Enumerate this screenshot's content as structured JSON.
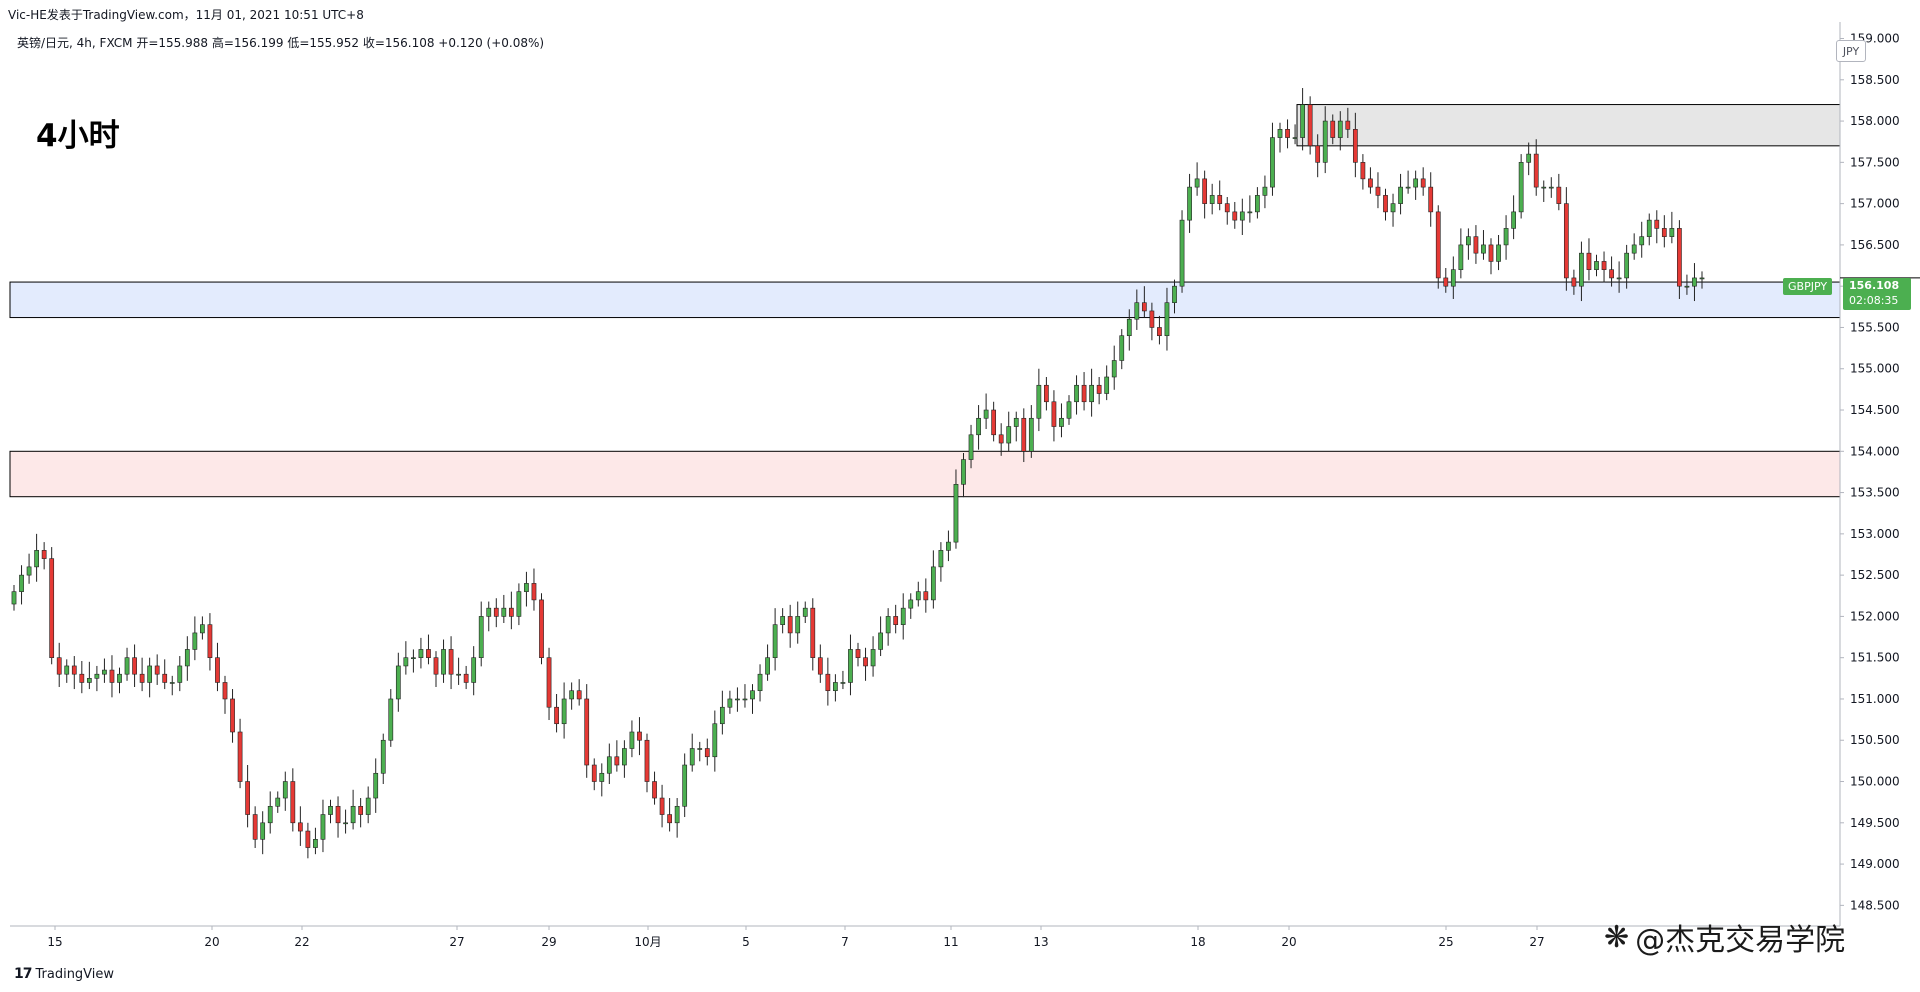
{
  "header": {
    "publisher": "Vic-HE发表于TradingView.com，11月 01, 2021 10:51 UTC+8",
    "ohlc": "英镑/日元, 4h, FXCM  开=155.988  高=156.199  低=155.952  收=156.108  +0.120 (+0.08%)"
  },
  "timeframe_label": "4小时",
  "currency_badge": "JPY",
  "symbol_tag": "GBPJPY",
  "last_price": {
    "value": "156.108",
    "countdown": "02:08:35"
  },
  "footer": {
    "logo_mark": "17",
    "logo_text": "TradingView"
  },
  "brand": {
    "icon": "wechat-like-icon",
    "text": "@杰克交易学院"
  },
  "colors": {
    "up": "#26a69a",
    "up_fill": "#4caf50",
    "down": "#ef5350",
    "down_fill": "#e53935",
    "wick": "#222222",
    "grid": "#e0e3eb"
  },
  "chart_data": {
    "type": "candlestick",
    "symbol": "GBPJPY",
    "interval": "4h",
    "ylim": [
      148.2,
      159.1
    ],
    "y_ticks": [
      "159.000",
      "158.500",
      "158.000",
      "157.500",
      "157.000",
      "156.500",
      "156.000",
      "155.500",
      "155.000",
      "154.500",
      "154.000",
      "153.500",
      "153.000",
      "152.500",
      "152.000",
      "151.500",
      "151.000",
      "150.500",
      "150.000",
      "149.500",
      "149.000",
      "148.500"
    ],
    "x_ticks": [
      "15",
      "20",
      "22",
      "27",
      "29",
      "10月",
      "5",
      "7",
      "11",
      "13",
      "18",
      "20",
      "25",
      "27"
    ],
    "zones": [
      {
        "name": "resistance",
        "from": 157.7,
        "to": 158.2,
        "color": "#e6e6e6"
      },
      {
        "name": "support-blue",
        "from": 155.62,
        "to": 156.05,
        "color": "#e3ebfd"
      },
      {
        "name": "support-red",
        "from": 153.45,
        "to": 154.0,
        "color": "#fde8e8"
      }
    ],
    "closes": [
      152.3,
      152.5,
      152.6,
      152.8,
      152.7,
      151.5,
      151.3,
      151.4,
      151.3,
      151.2,
      151.25,
      151.3,
      151.35,
      151.2,
      151.3,
      151.5,
      151.3,
      151.2,
      151.4,
      151.3,
      151.2,
      151.2,
      151.4,
      151.6,
      151.8,
      151.9,
      151.5,
      151.2,
      151.0,
      150.6,
      150.0,
      149.6,
      149.3,
      149.5,
      149.7,
      149.8,
      150.0,
      149.5,
      149.4,
      149.2,
      149.3,
      149.6,
      149.7,
      149.5,
      149.5,
      149.7,
      149.6,
      149.8,
      150.1,
      150.5,
      151.0,
      151.4,
      151.5,
      151.5,
      151.6,
      151.5,
      151.3,
      151.6,
      151.3,
      151.3,
      151.2,
      151.5,
      152.0,
      152.1,
      152.0,
      152.1,
      152.0,
      152.3,
      152.4,
      152.2,
      151.5,
      150.9,
      150.7,
      151.0,
      151.1,
      151.0,
      150.2,
      150.0,
      150.1,
      150.3,
      150.2,
      150.4,
      150.6,
      150.5,
      150.0,
      149.8,
      149.6,
      149.5,
      149.7,
      150.2,
      150.4,
      150.4,
      150.3,
      150.7,
      150.9,
      151.0,
      151.0,
      151.0,
      151.1,
      151.3,
      151.5,
      151.9,
      152.0,
      151.8,
      152.0,
      152.1,
      151.5,
      151.3,
      151.1,
      151.2,
      151.2,
      151.6,
      151.5,
      151.4,
      151.6,
      151.8,
      152.0,
      151.9,
      152.1,
      152.2,
      152.3,
      152.2,
      152.6,
      152.8,
      152.9,
      153.6,
      153.9,
      154.2,
      154.4,
      154.5,
      154.2,
      154.1,
      154.3,
      154.4,
      154.0,
      154.4,
      154.8,
      154.6,
      154.3,
      154.4,
      154.6,
      154.8,
      154.6,
      154.8,
      154.7,
      154.9,
      155.1,
      155.4,
      155.6,
      155.8,
      155.7,
      155.5,
      155.4,
      155.8,
      156.0,
      156.8,
      157.2,
      157.3,
      157.0,
      157.1,
      157.0,
      156.9,
      156.8,
      156.9,
      156.9,
      157.1,
      157.2,
      157.8,
      157.9,
      157.8,
      157.8,
      158.2,
      157.7,
      157.5,
      158.0,
      157.8,
      158.0,
      157.9,
      157.5,
      157.3,
      157.2,
      157.1,
      156.9,
      157.0,
      157.2,
      157.2,
      157.3,
      157.2,
      156.9,
      156.1,
      156.0,
      156.2,
      156.5,
      156.6,
      156.4,
      156.5,
      156.3,
      156.5,
      156.7,
      156.9,
      157.5,
      157.6,
      157.2,
      157.2,
      157.2,
      157.0,
      156.1,
      156.0,
      156.4,
      156.2,
      156.3,
      156.2,
      156.1,
      156.1,
      156.4,
      156.5,
      156.6,
      156.8,
      156.7,
      156.6,
      156.7,
      156.0,
      156.0,
      156.1,
      156.1
    ]
  }
}
